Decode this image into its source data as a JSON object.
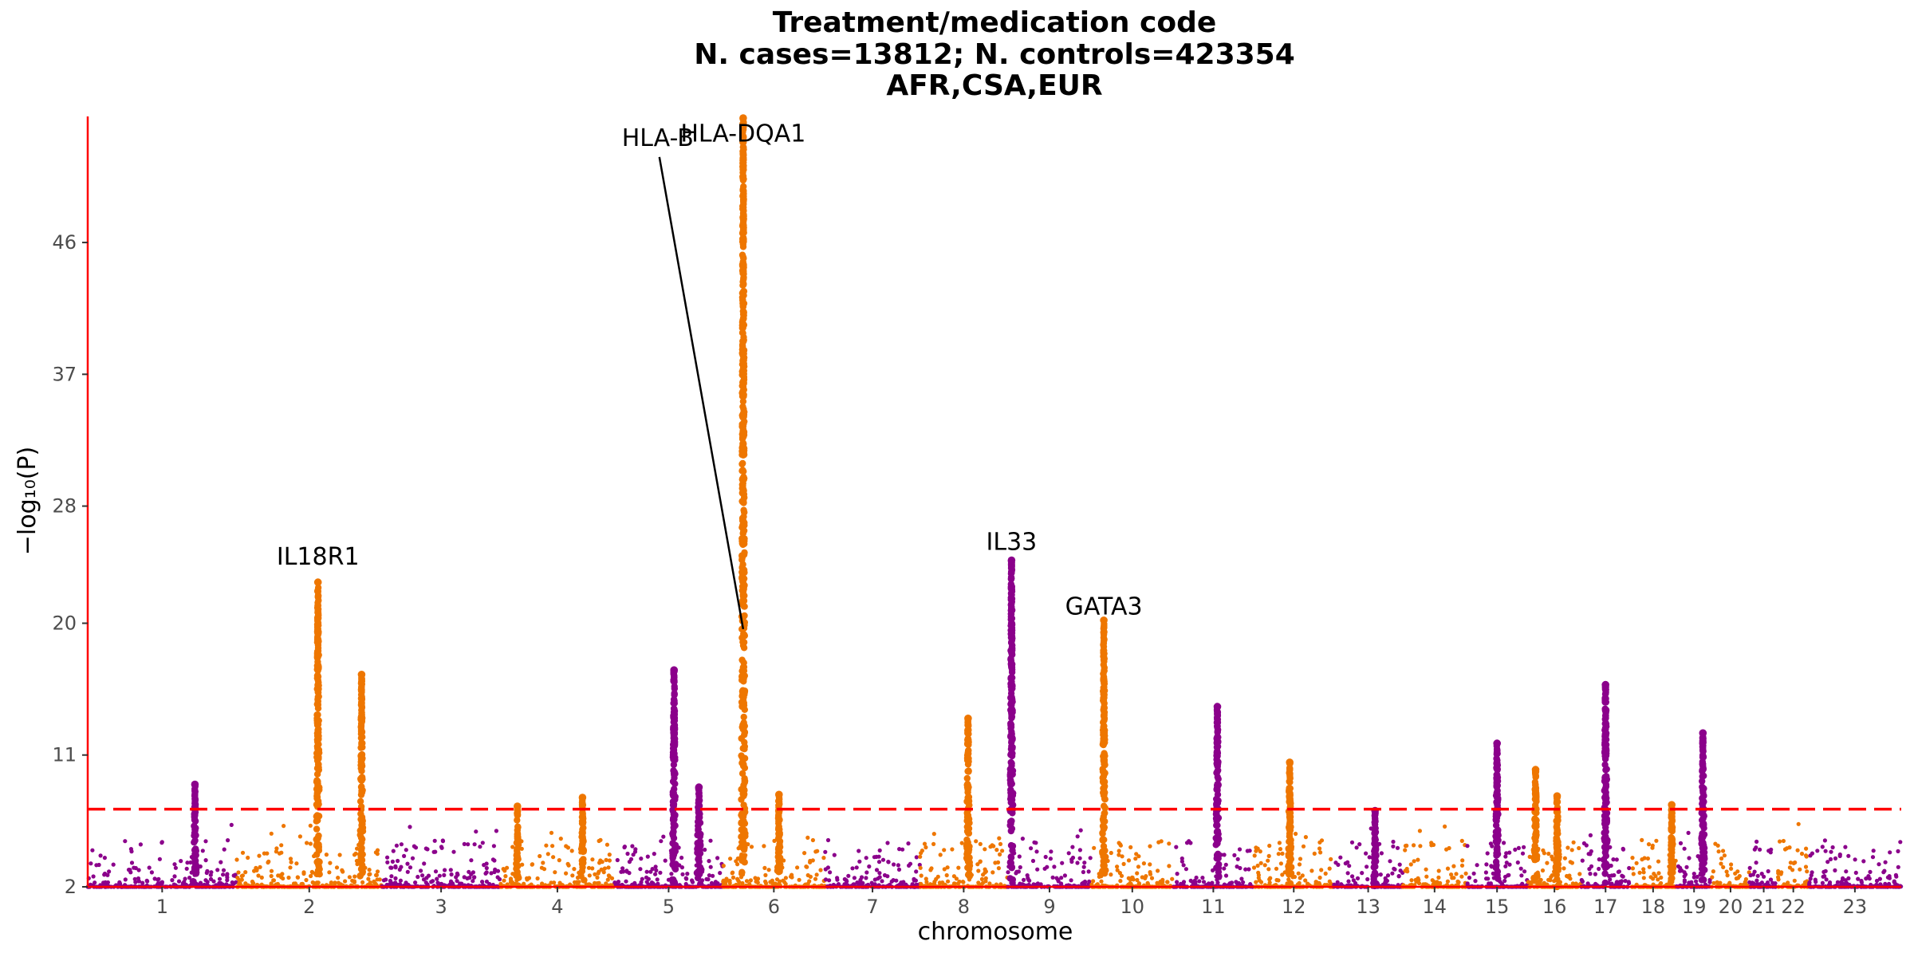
{
  "chart_data": {
    "type": "scatter",
    "subtype": "manhattan",
    "title_lines": [
      "Treatment/medication code",
      "N. cases=13812; N. controls=423354",
      "AFR,CSA,EUR"
    ],
    "xlabel": "chromosome",
    "ylabel": "−log₁₀(P)",
    "ylim": [
      2,
      54.5
    ],
    "y_ticks": [
      2,
      11,
      20,
      28,
      37,
      46
    ],
    "significance_threshold": 7.3,
    "colors": {
      "odd": "#8b008b",
      "even": "#ee7600",
      "threshold": "#ff0000",
      "axis": "#ff0000"
    },
    "chromosomes": [
      {
        "label": "1",
        "length": 249
      },
      {
        "label": "2",
        "length": 243
      },
      {
        "label": "3",
        "length": 198
      },
      {
        "label": "4",
        "length": 191
      },
      {
        "label": "5",
        "length": 181
      },
      {
        "label": "6",
        "length": 171
      },
      {
        "label": "7",
        "length": 159
      },
      {
        "label": "8",
        "length": 146
      },
      {
        "label": "9",
        "length": 141
      },
      {
        "label": "10",
        "length": 136
      },
      {
        "label": "11",
        "length": 135
      },
      {
        "label": "12",
        "length": 134
      },
      {
        "label": "13",
        "length": 115
      },
      {
        "label": "14",
        "length": 107
      },
      {
        "label": "15",
        "length": 102
      },
      {
        "label": "16",
        "length": 90
      },
      {
        "label": "17",
        "length": 81
      },
      {
        "label": "18",
        "length": 78
      },
      {
        "label": "19",
        "length": 59
      },
      {
        "label": "20",
        "length": 63
      },
      {
        "label": "21",
        "length": 48
      },
      {
        "label": "22",
        "length": 51
      },
      {
        "label": "23",
        "length": 155
      }
    ],
    "peaks": [
      {
        "chr": "1",
        "pos": 0.72,
        "max": 9.0,
        "width": 0.01
      },
      {
        "chr": "2",
        "pos": 0.56,
        "max": 22.8,
        "width": 0.012
      },
      {
        "chr": "2",
        "pos": 0.86,
        "max": 16.5,
        "width": 0.01
      },
      {
        "chr": "4",
        "pos": 0.15,
        "max": 7.5,
        "width": 0.01
      },
      {
        "chr": "4",
        "pos": 0.72,
        "max": 8.1,
        "width": 0.01
      },
      {
        "chr": "5",
        "pos": 0.55,
        "max": 16.8,
        "width": 0.012
      },
      {
        "chr": "5",
        "pos": 0.78,
        "max": 8.8,
        "width": 0.02
      },
      {
        "chr": "6",
        "pos": 0.2,
        "max": 54.5,
        "width": 0.014
      },
      {
        "chr": "6",
        "pos": 0.55,
        "max": 8.3,
        "width": 0.01
      },
      {
        "chr": "8",
        "pos": 0.55,
        "max": 13.5,
        "width": 0.012
      },
      {
        "chr": "9",
        "pos": 0.05,
        "max": 24.3,
        "width": 0.012
      },
      {
        "chr": "10",
        "pos": 0.15,
        "max": 20.2,
        "width": 0.012
      },
      {
        "chr": "11",
        "pos": 0.55,
        "max": 14.3,
        "width": 0.012
      },
      {
        "chr": "12",
        "pos": 0.45,
        "max": 10.5,
        "width": 0.012
      },
      {
        "chr": "13",
        "pos": 0.6,
        "max": 7.2,
        "width": 0.01
      },
      {
        "chr": "15",
        "pos": 0.5,
        "max": 11.8,
        "width": 0.012
      },
      {
        "chr": "16",
        "pos": 0.15,
        "max": 10.0,
        "width": 0.012
      },
      {
        "chr": "16",
        "pos": 0.55,
        "max": 8.2,
        "width": 0.012
      },
      {
        "chr": "17",
        "pos": 0.5,
        "max": 15.8,
        "width": 0.014
      },
      {
        "chr": "19",
        "pos": 0.75,
        "max": 12.5,
        "width": 0.012
      },
      {
        "chr": "18",
        "pos": 0.9,
        "max": 7.6,
        "width": 0.01
      }
    ],
    "annotations": [
      {
        "text": "IL18R1",
        "chr": "2",
        "pos": 0.56,
        "y": 24.0
      },
      {
        "text": "HLA-DQA1",
        "chr": "6",
        "pos": 0.2,
        "y": 52.9
      },
      {
        "text": "IL33",
        "chr": "9",
        "pos": 0.05,
        "y": 25.0
      },
      {
        "text": "GATA3",
        "chr": "10",
        "pos": 0.15,
        "y": 20.6
      }
    ],
    "leader_annotation": {
      "text": "HLA-B",
      "chr": "5",
      "pos": 0.4,
      "y": 52.6,
      "target_chr": "6",
      "target_pos": 0.2,
      "target_y": 19.6
    }
  }
}
